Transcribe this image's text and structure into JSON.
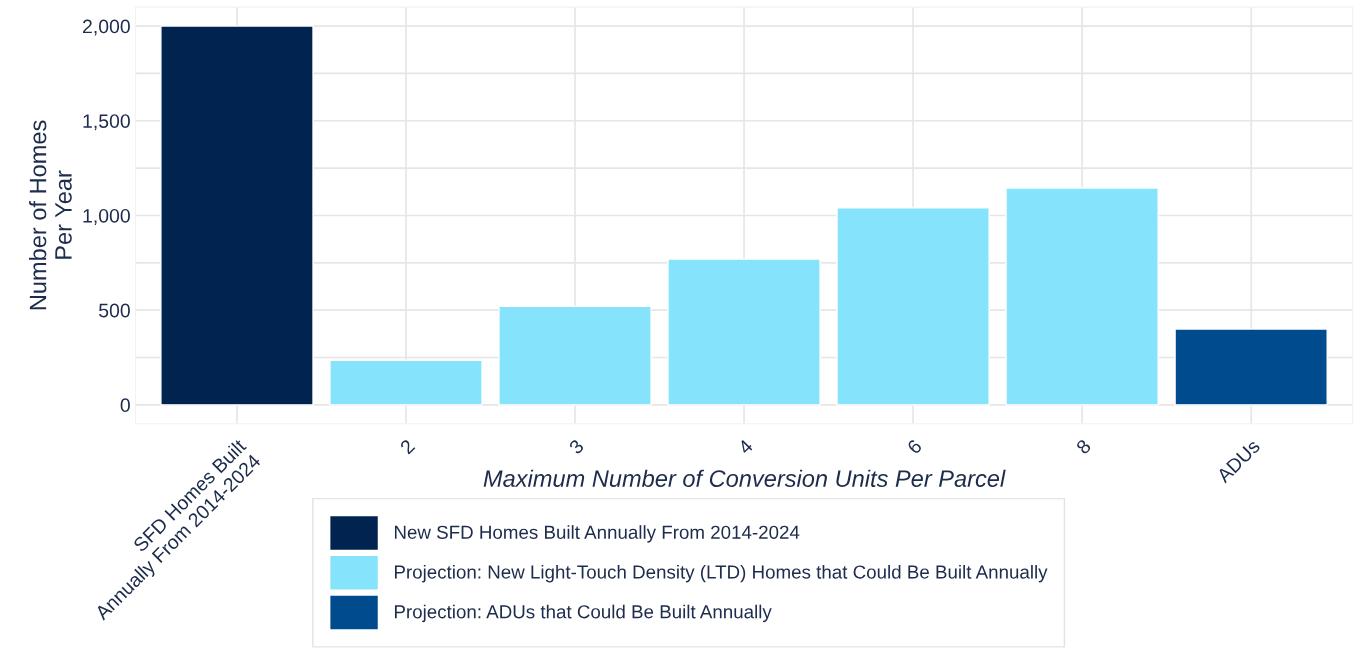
{
  "chart_data": {
    "type": "bar",
    "categories": [
      "SFD Homes Built\nAnnually From 2014-2024",
      "2",
      "3",
      "4",
      "6",
      "8",
      "ADUs"
    ],
    "series": [
      {
        "name": "New SFD Homes Built Annually From 2014-2024",
        "color": "#00234f",
        "values": [
          2000,
          null,
          null,
          null,
          null,
          null,
          null
        ]
      },
      {
        "name": "Projection: New Light-Touch Density (LTD) Homes that Could Be Built Annually",
        "color": "#85e3fc",
        "values": [
          null,
          235,
          520,
          770,
          1040,
          1145,
          null
        ]
      },
      {
        "name": "Projection: ADUs that Could Be Built Annually",
        "color": "#004b8d",
        "values": [
          null,
          null,
          null,
          null,
          null,
          null,
          400
        ]
      }
    ],
    "xlabel": "Maximum Number of Conversion Units Per Parcel",
    "ylabel": "Number of Homes\nPer Year",
    "ylim": [
      -100,
      2100
    ],
    "yticks": [
      0,
      {
        "value": 250,
        "label": null
      },
      {
        "value": 500,
        "label": "500"
      },
      {
        "value": 750,
        "label": null
      },
      {
        "value": 1000,
        "label": "1,000"
      },
      {
        "value": 1250,
        "label": null
      },
      {
        "value": 1500,
        "label": "1,500"
      },
      {
        "value": 1750,
        "label": null
      },
      {
        "value": 2000,
        "label": "2,000"
      }
    ],
    "grid": true,
    "legend": "bottom"
  }
}
